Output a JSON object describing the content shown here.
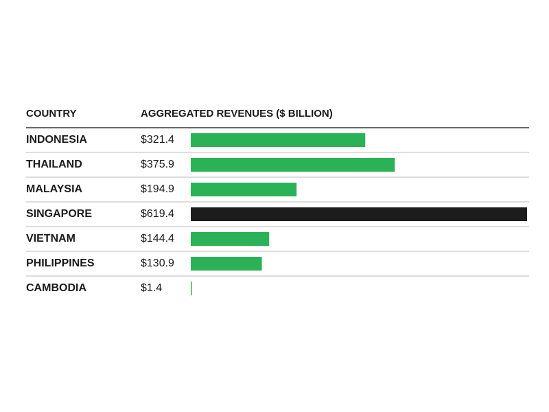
{
  "chart_data": {
    "type": "bar",
    "orientation": "horizontal",
    "column_headers": [
      "COUNTRY",
      "AGGREGATED REVENUES ($ BILLION)"
    ],
    "categories": [
      "INDONESIA",
      "THAILAND",
      "MALAYSIA",
      "SINGAPORE",
      "VIETNAM",
      "PHILIPPINES",
      "CAMBODIA"
    ],
    "values": [
      321.4,
      375.9,
      194.9,
      619.4,
      144.4,
      130.9,
      1.4
    ],
    "value_labels": [
      "$321.4",
      "$375.9",
      "$194.9",
      "$619.4",
      "$144.4",
      "$130.9",
      "$1.4"
    ],
    "colors": [
      "#2bb257",
      "#2bb257",
      "#2bb257",
      "#1c1c1c",
      "#2bb257",
      "#2bb257",
      "#2bb257"
    ]
  }
}
